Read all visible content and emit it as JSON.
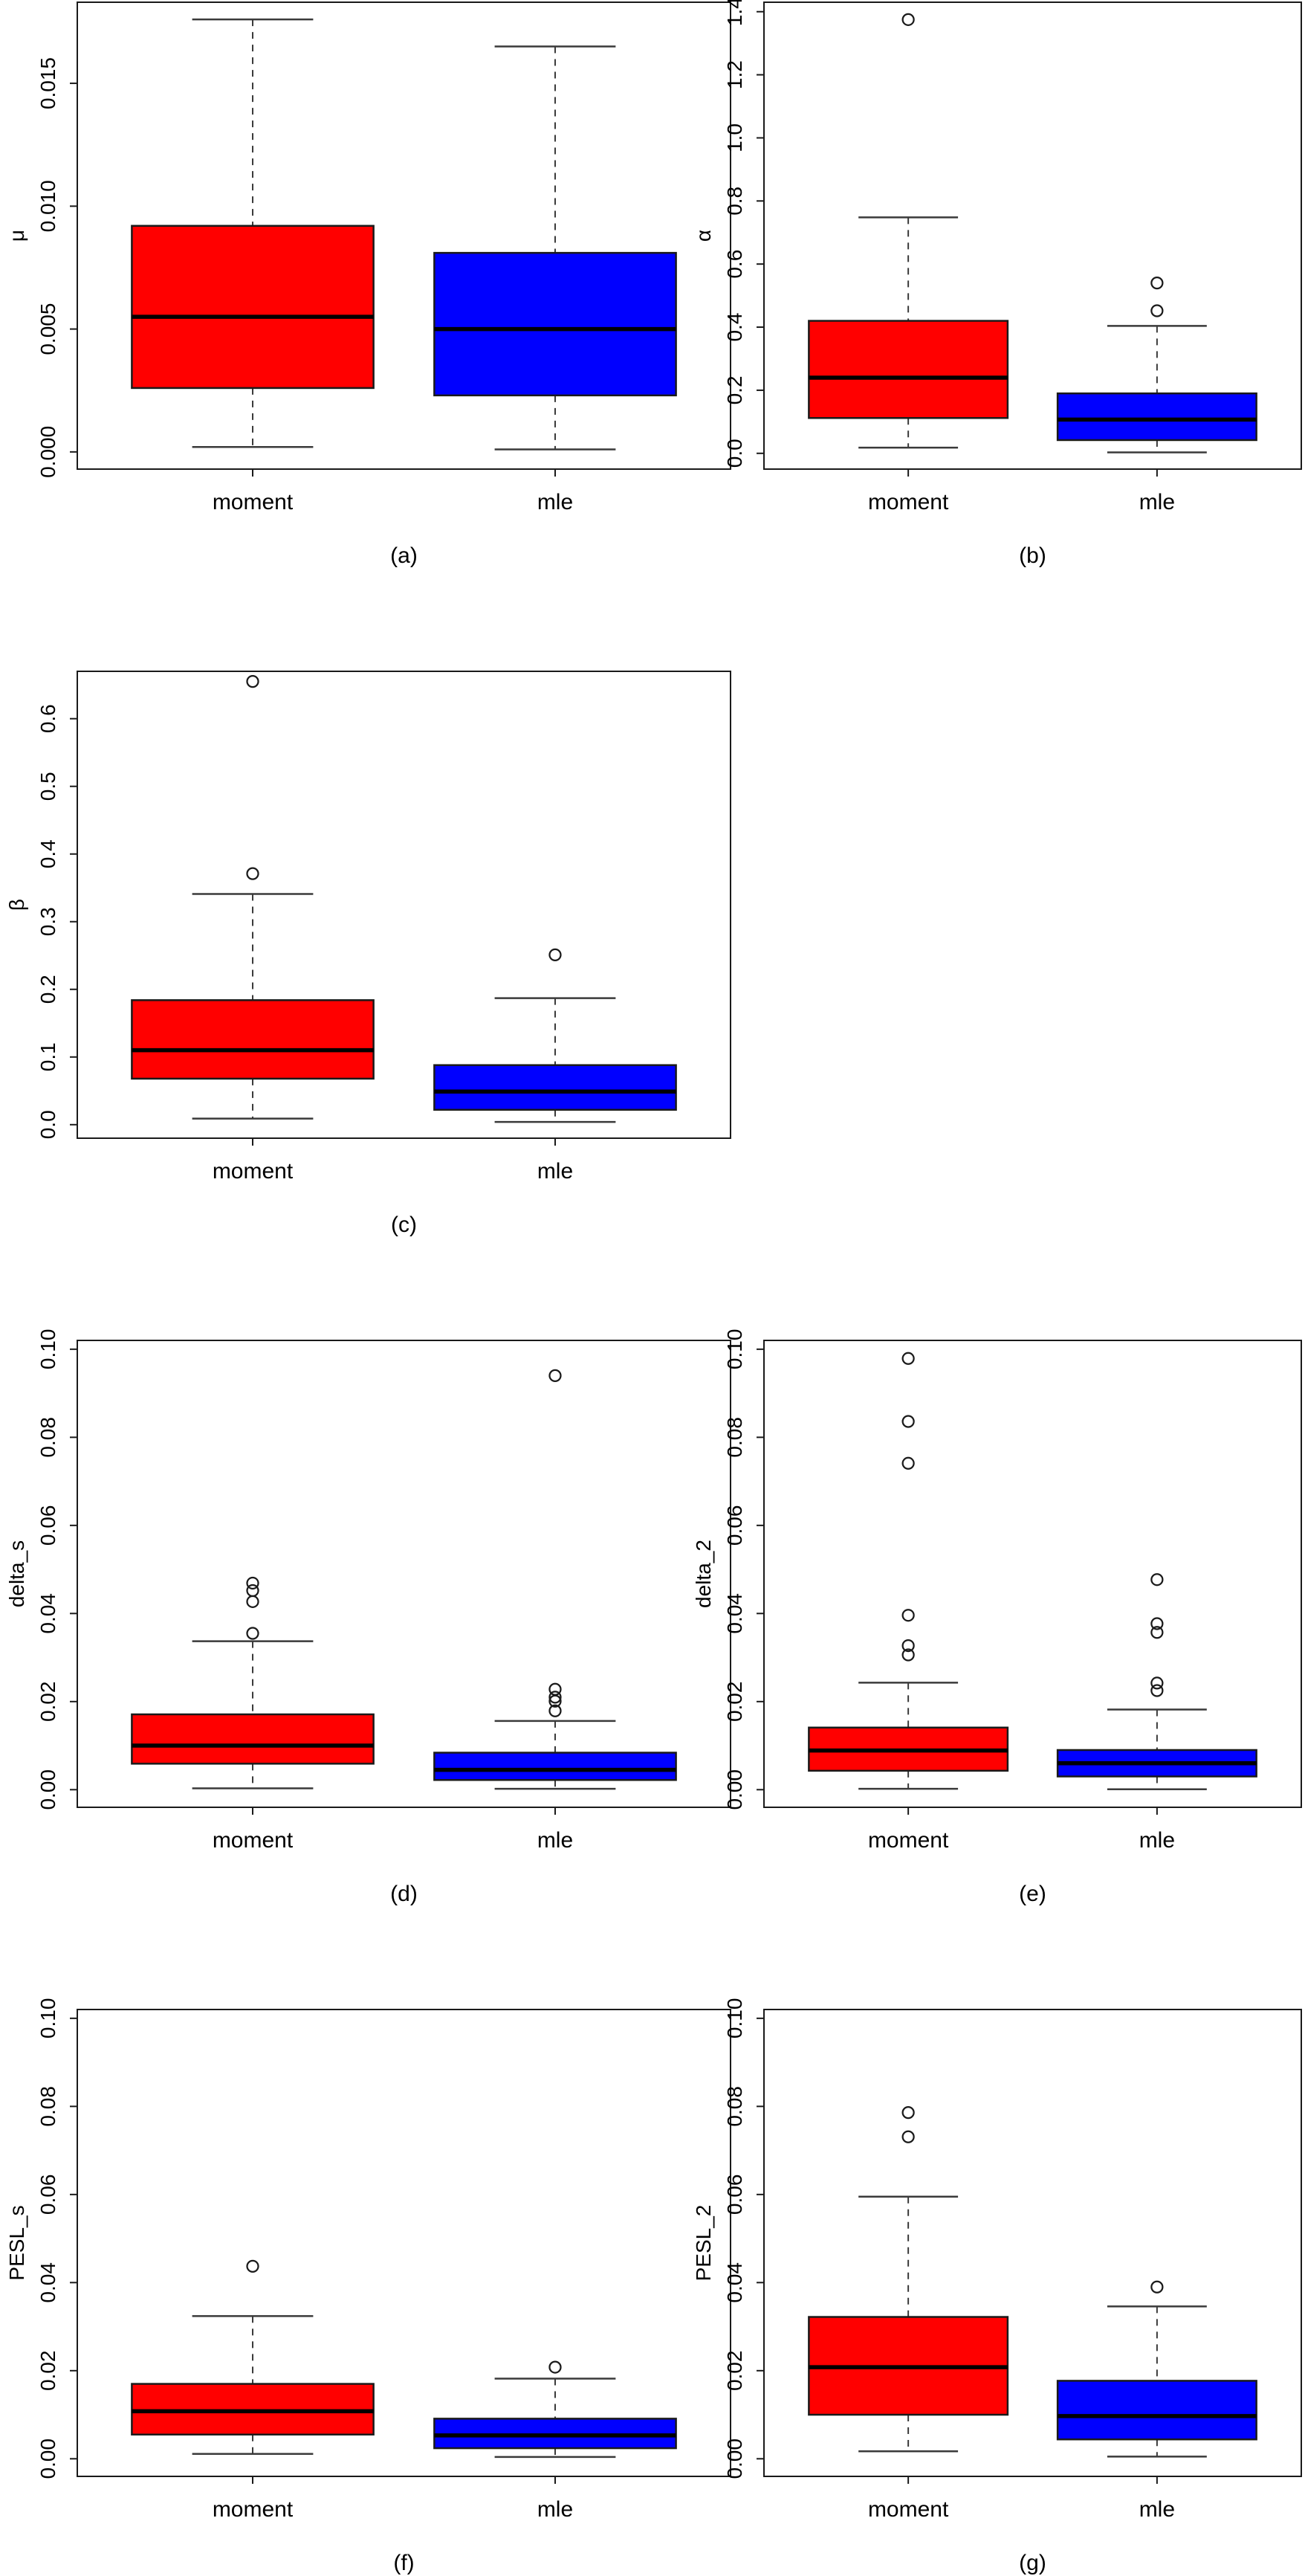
{
  "figure": {
    "title": "",
    "categories": [
      "moment",
      "mle"
    ],
    "colors": {
      "moment_fill": "#ff0000",
      "mle_fill": "#0000ff",
      "box_border": "#1a1a1a",
      "median": "#000000",
      "whisker": "#3a3a3a",
      "axis": "#1a1a1a",
      "background": "#ffffff"
    }
  },
  "chart_data": [
    {
      "type": "boxplot",
      "id": "a",
      "caption": "(a)",
      "ylabel": "μ",
      "categories": [
        "moment",
        "mle"
      ],
      "ytick_values": [
        0.0,
        0.005,
        0.01,
        0.015
      ],
      "ytick_labels": [
        "0.000",
        "0.005",
        "0.010",
        "0.015"
      ],
      "ylim": [
        -0.0007,
        0.0183
      ],
      "grid": {
        "row": 0,
        "col": 0
      },
      "series": [
        {
          "name": "moment",
          "color": "#ff0000",
          "low": 0.0002,
          "q1": 0.0026,
          "median": 0.0055,
          "q3": 0.0092,
          "high": 0.0176,
          "outliers": []
        },
        {
          "name": "mle",
          "color": "#0000ff",
          "low": 0.0001,
          "q1": 0.0023,
          "median": 0.005,
          "q3": 0.0081,
          "high": 0.0165,
          "outliers": []
        }
      ]
    },
    {
      "type": "boxplot",
      "id": "b",
      "caption": "(b)",
      "ylabel": "α",
      "categories": [
        "moment",
        "mle"
      ],
      "ytick_values": [
        0.0,
        0.2,
        0.4,
        0.6,
        0.8,
        1.0,
        1.2,
        1.4
      ],
      "ytick_labels": [
        "0.0",
        "0.2",
        "0.4",
        "0.6",
        "0.8",
        "1.0",
        "1.2",
        "1.4"
      ],
      "ylim": [
        -0.05,
        1.43
      ],
      "grid": {
        "row": 0,
        "col": 1
      },
      "series": [
        {
          "name": "moment",
          "color": "#ff0000",
          "low": 0.018,
          "q1": 0.112,
          "median": 0.24,
          "q3": 0.42,
          "high": 0.748,
          "outliers": [
            1.375
          ]
        },
        {
          "name": "mle",
          "color": "#0000ff",
          "low": 0.003,
          "q1": 0.042,
          "median": 0.107,
          "q3": 0.19,
          "high": 0.404,
          "outliers": [
            0.54,
            0.452
          ]
        }
      ]
    },
    {
      "type": "boxplot",
      "id": "c",
      "caption": "(c)",
      "ylabel": "β",
      "categories": [
        "moment",
        "mle"
      ],
      "ytick_values": [
        0.0,
        0.1,
        0.2,
        0.3,
        0.4,
        0.5,
        0.6
      ],
      "ytick_labels": [
        "0.0",
        "0.1",
        "0.2",
        "0.3",
        "0.4",
        "0.5",
        "0.6"
      ],
      "ylim": [
        -0.02,
        0.67
      ],
      "grid": {
        "row": 1,
        "col": 0
      },
      "series": [
        {
          "name": "moment",
          "color": "#ff0000",
          "low": 0.009,
          "q1": 0.068,
          "median": 0.11,
          "q3": 0.184,
          "high": 0.341,
          "outliers": [
            0.655,
            0.371
          ]
        },
        {
          "name": "mle",
          "color": "#0000ff",
          "low": 0.004,
          "q1": 0.022,
          "median": 0.049,
          "q3": 0.088,
          "high": 0.187,
          "outliers": [
            0.251
          ]
        }
      ]
    },
    {
      "type": "boxplot",
      "id": "d",
      "caption": "(d)",
      "ylabel": "delta_s",
      "categories": [
        "moment",
        "mle"
      ],
      "ytick_values": [
        0.0,
        0.02,
        0.04,
        0.06,
        0.08,
        0.1
      ],
      "ytick_labels": [
        "0.00",
        "0.02",
        "0.04",
        "0.06",
        "0.08",
        "0.10"
      ],
      "ylim": [
        -0.004,
        0.102
      ],
      "grid": {
        "row": 2,
        "col": 0
      },
      "series": [
        {
          "name": "moment",
          "color": "#ff0000",
          "low": 0.0003,
          "q1": 0.0059,
          "median": 0.01,
          "q3": 0.0171,
          "high": 0.0337,
          "outliers": [
            0.0469,
            0.0452,
            0.0427,
            0.0355
          ]
        },
        {
          "name": "mle",
          "color": "#0000ff",
          "low": 0.0002,
          "q1": 0.0022,
          "median": 0.0045,
          "q3": 0.0084,
          "high": 0.0156,
          "outliers": [
            0.094,
            0.0228,
            0.021,
            0.0201,
            0.0179
          ]
        }
      ]
    },
    {
      "type": "boxplot",
      "id": "e",
      "caption": "(e)",
      "ylabel": "delta_2",
      "categories": [
        "moment",
        "mle"
      ],
      "ytick_values": [
        0.0,
        0.02,
        0.04,
        0.06,
        0.08,
        0.1
      ],
      "ytick_labels": [
        "0.00",
        "0.02",
        "0.04",
        "0.06",
        "0.08",
        "0.10"
      ],
      "ylim": [
        -0.004,
        0.102
      ],
      "grid": {
        "row": 2,
        "col": 1
      },
      "series": [
        {
          "name": "moment",
          "color": "#ff0000",
          "low": 0.0002,
          "q1": 0.0043,
          "median": 0.0089,
          "q3": 0.0141,
          "high": 0.0243,
          "outliers": [
            0.0979,
            0.0836,
            0.0741,
            0.0396,
            0.0327,
            0.0306
          ]
        },
        {
          "name": "mle",
          "color": "#0000ff",
          "low": 0.0001,
          "q1": 0.003,
          "median": 0.006,
          "q3": 0.009,
          "high": 0.0182,
          "outliers": [
            0.0477,
            0.0377,
            0.0357,
            0.0242,
            0.0225
          ]
        }
      ]
    },
    {
      "type": "boxplot",
      "id": "f",
      "caption": "(f)",
      "ylabel": "PESL_s",
      "categories": [
        "moment",
        "mle"
      ],
      "ytick_values": [
        0.0,
        0.02,
        0.04,
        0.06,
        0.08,
        0.1
      ],
      "ytick_labels": [
        "0.00",
        "0.02",
        "0.04",
        "0.06",
        "0.08",
        "0.10"
      ],
      "ylim": [
        -0.004,
        0.102
      ],
      "grid": {
        "row": 3,
        "col": 0
      },
      "series": [
        {
          "name": "moment",
          "color": "#ff0000",
          "low": 0.0011,
          "q1": 0.0055,
          "median": 0.0108,
          "q3": 0.017,
          "high": 0.0324,
          "outliers": [
            0.0437
          ]
        },
        {
          "name": "mle",
          "color": "#0000ff",
          "low": 0.0004,
          "q1": 0.0024,
          "median": 0.0053,
          "q3": 0.0091,
          "high": 0.0182,
          "outliers": [
            0.0208
          ]
        }
      ]
    },
    {
      "type": "boxplot",
      "id": "g",
      "caption": "(g)",
      "ylabel": "PESL_2",
      "categories": [
        "moment",
        "mle"
      ],
      "ytick_values": [
        0.0,
        0.02,
        0.04,
        0.06,
        0.08,
        0.1
      ],
      "ytick_labels": [
        "0.00",
        "0.02",
        "0.04",
        "0.06",
        "0.08",
        "0.10"
      ],
      "ylim": [
        -0.004,
        0.102
      ],
      "grid": {
        "row": 3,
        "col": 1
      },
      "series": [
        {
          "name": "moment",
          "color": "#ff0000",
          "low": 0.0017,
          "q1": 0.01,
          "median": 0.0208,
          "q3": 0.0322,
          "high": 0.0595,
          "outliers": [
            0.0786,
            0.0731
          ]
        },
        {
          "name": "mle",
          "color": "#0000ff",
          "low": 0.0005,
          "q1": 0.0044,
          "median": 0.0097,
          "q3": 0.0177,
          "high": 0.0346,
          "outliers": [
            0.039
          ]
        }
      ]
    }
  ]
}
